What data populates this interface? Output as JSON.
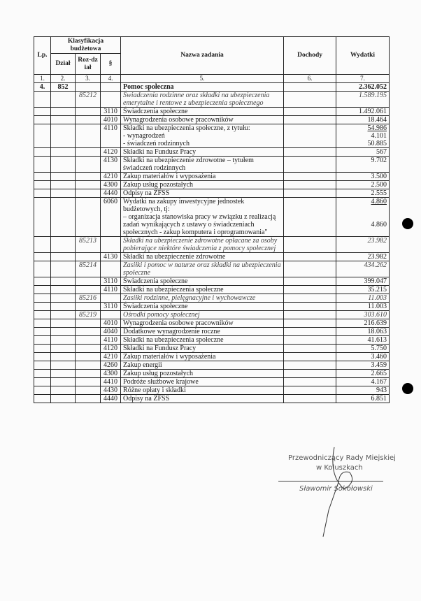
{
  "table": {
    "header": {
      "lp": "Lp.",
      "classification": "Klasyfikacja budżetowa",
      "dzial": "Dział",
      "rozdzial": "Roz-dział",
      "paragraf": "§",
      "name": "Nazwa zadania",
      "dochody": "Dochody",
      "wydatki": "Wydatki"
    },
    "numbers": [
      "1.",
      "2.",
      "3.",
      "4.",
      "5.",
      "6.",
      "7."
    ],
    "rows": [
      {
        "lp": "4.",
        "dzial": "852",
        "name": "Pomoc społeczna",
        "wydatki": "2.362.052"
      },
      {
        "rozdzial": "85212",
        "name": "Świadczenia rodzinne oraz składki na ubezpieczenia emerytalne i rentowe z ubezpieczenia społecznego",
        "wydatki": "1.589.195"
      },
      {
        "paragraf": "3110",
        "name": "Świadczenia społeczne",
        "wydatki": "1.492.061"
      },
      {
        "paragraf": "4010",
        "name": "Wynagrodzenia osobowe pracowników",
        "wydatki": "18.464"
      },
      {
        "paragraf": "4110",
        "name": [
          "Składki na ubezpieczenia społeczne, z tytułu:",
          "- wynagrodzeń",
          "- świadczeń rodzinnych"
        ],
        "wydatki": [
          "54.986",
          "4.101",
          "50.885"
        ]
      },
      {
        "paragraf": "4120",
        "name": "Składki na Fundusz Pracy",
        "wydatki": "567"
      },
      {
        "paragraf": "4130",
        "name": "Składki na ubezpieczenie zdrowotne – tytułem świadczeń rodzinnych",
        "wydatki": "9.702"
      },
      {
        "paragraf": "4210",
        "name": "Zakup materiałów i wyposażenia",
        "wydatki": "3.500"
      },
      {
        "paragraf": "4300",
        "name": "Zakup usług pozostałych",
        "wydatki": "2.500"
      },
      {
        "paragraf": "4440",
        "name": "Odpisy na ZFSS",
        "wydatki": "2.555"
      },
      {
        "paragraf": "6060",
        "name": [
          "Wydatki na zakupy inwestycyjne jednostek budżetowych, tj:",
          "– organizacja stanowiska pracy w związku z realizacją zadań wynikających z ustawy o świadczeniach społecznych - zakup komputera i oprogramowania\""
        ],
        "wydatki": [
          "4.860",
          "4.860"
        ]
      },
      {
        "rozdzial": "85213",
        "name": "Składki na ubezpieczenie zdrowotne opłacane za osoby pobierające niektóre świadczenia z pomocy społecznej",
        "wydatki": "23.982"
      },
      {
        "paragraf": "4130",
        "name": "Składki na ubezpieczenie zdrowotne",
        "wydatki": "23.982"
      },
      {
        "rozdzial": "85214",
        "name": "Zasiłki i pomoc w naturze oraz składki na ubezpieczenia społeczne",
        "wydatki": "434.262"
      },
      {
        "paragraf": "3110",
        "name": "Świadczenia społeczne",
        "wydatki": "399.047"
      },
      {
        "paragraf": "4110",
        "name": "Składki na ubezpieczenia społeczne",
        "wydatki": "35.215"
      },
      {
        "rozdzial": "85216",
        "name": "Zasiłki rodzinne, pielęgnacyjne i wychowawcze",
        "wydatki": "11.003"
      },
      {
        "paragraf": "3110",
        "name": "Świadczenia społeczne",
        "wydatki": "11.003"
      },
      {
        "rozdzial": "85219",
        "name": "Ośrodki pomocy społecznej",
        "wydatki": "303.610"
      },
      {
        "paragraf": "4010",
        "name": "Wynagrodzenia osobowe pracowników",
        "wydatki": "216.639"
      },
      {
        "paragraf": "4040",
        "name": "Dodatkowe wynagrodzenie roczne",
        "wydatki": "18.063"
      },
      {
        "paragraf": "4110",
        "name": "Składki na ubezpieczenia społeczne",
        "wydatki": "41.613"
      },
      {
        "paragraf": "4120",
        "name": "Składki na Fundusz Pracy",
        "wydatki": "5.750"
      },
      {
        "paragraf": "4210",
        "name": "Zakup materiałów i wyposażenia",
        "wydatki": "3.460"
      },
      {
        "paragraf": "4260",
        "name": "Zakup energii",
        "wydatki": "3.459"
      },
      {
        "paragraf": "4300",
        "name": "Zakup usług pozostałych",
        "wydatki": "2.665"
      },
      {
        "paragraf": "4410",
        "name": "Podróże służbowe krajowe",
        "wydatki": "4.167"
      },
      {
        "paragraf": "4430",
        "name": "Różne opłaty i składki",
        "wydatki": "943"
      },
      {
        "paragraf": "4440",
        "name": "Odpisy na ZFSS",
        "wydatki": "6.851"
      }
    ]
  },
  "signature": {
    "title": "Przewodniczący Rady Miejskiej",
    "place": "w Koluszkach",
    "name": "Sławomir Sokołowski"
  }
}
